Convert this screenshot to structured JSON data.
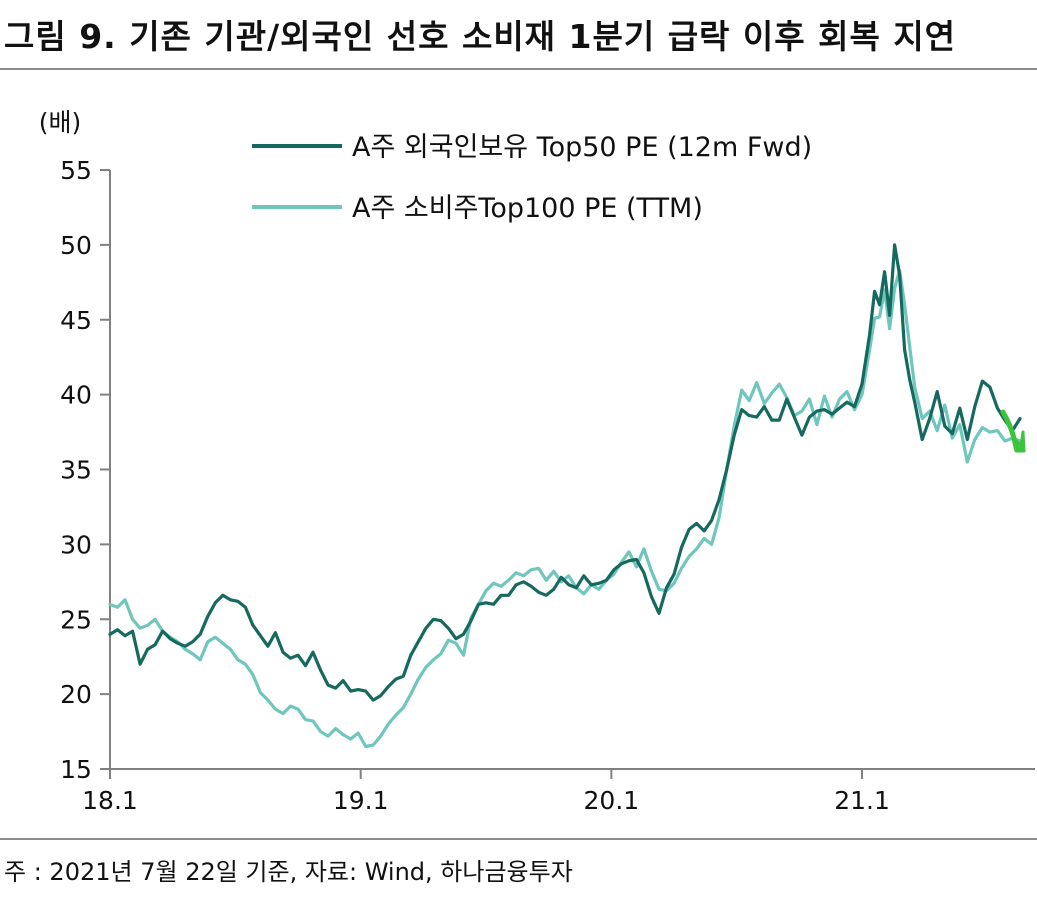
{
  "title": "그림 9. 기존 기관/외국인 선호 소비재 1분기 급락 이후 회복 지연",
  "footnote": "주 : 2021년 7월 22일 기준, 자료: Wind, 하나금융투자",
  "chart_data": {
    "type": "line",
    "ylabel": "(배)",
    "xlabel": "",
    "ylim": [
      15,
      55
    ],
    "yticks": [
      15,
      20,
      25,
      30,
      35,
      40,
      45,
      50,
      55
    ],
    "xticks": [
      "18.1",
      "19.1",
      "20.1",
      "21.1"
    ],
    "xlim_years": [
      2018.0,
      2021.69
    ],
    "grid": false,
    "legend_position": "top",
    "series": [
      {
        "name": "A주 외국인보유 Top50 PE (12m Fwd)",
        "color": "#16695e",
        "points": [
          [
            2018.0,
            24.0
          ],
          [
            2018.03,
            24.3
          ],
          [
            2018.06,
            23.9
          ],
          [
            2018.09,
            24.2
          ],
          [
            2018.12,
            22.0
          ],
          [
            2018.15,
            23.0
          ],
          [
            2018.18,
            23.3
          ],
          [
            2018.21,
            24.2
          ],
          [
            2018.24,
            23.7
          ],
          [
            2018.27,
            23.4
          ],
          [
            2018.3,
            23.2
          ],
          [
            2018.33,
            23.5
          ],
          [
            2018.36,
            24.0
          ],
          [
            2018.39,
            25.2
          ],
          [
            2018.42,
            26.1
          ],
          [
            2018.45,
            26.6
          ],
          [
            2018.48,
            26.3
          ],
          [
            2018.51,
            26.2
          ],
          [
            2018.54,
            25.8
          ],
          [
            2018.57,
            24.6
          ],
          [
            2018.6,
            23.9
          ],
          [
            2018.63,
            23.2
          ],
          [
            2018.66,
            24.1
          ],
          [
            2018.69,
            22.8
          ],
          [
            2018.72,
            22.4
          ],
          [
            2018.75,
            22.6
          ],
          [
            2018.78,
            21.9
          ],
          [
            2018.81,
            22.8
          ],
          [
            2018.84,
            21.6
          ],
          [
            2018.87,
            20.6
          ],
          [
            2018.9,
            20.4
          ],
          [
            2018.93,
            20.9
          ],
          [
            2018.96,
            20.2
          ],
          [
            2018.99,
            20.3
          ],
          [
            2019.02,
            20.2
          ],
          [
            2019.05,
            19.6
          ],
          [
            2019.08,
            19.9
          ],
          [
            2019.11,
            20.5
          ],
          [
            2019.14,
            21.0
          ],
          [
            2019.17,
            21.2
          ],
          [
            2019.2,
            22.6
          ],
          [
            2019.23,
            23.5
          ],
          [
            2019.26,
            24.4
          ],
          [
            2019.29,
            25.0
          ],
          [
            2019.32,
            24.9
          ],
          [
            2019.35,
            24.4
          ],
          [
            2019.38,
            23.7
          ],
          [
            2019.41,
            24.0
          ],
          [
            2019.44,
            24.9
          ],
          [
            2019.47,
            26.0
          ],
          [
            2019.5,
            26.1
          ],
          [
            2019.53,
            26.0
          ],
          [
            2019.56,
            26.6
          ],
          [
            2019.59,
            26.6
          ],
          [
            2019.62,
            27.3
          ],
          [
            2019.65,
            27.5
          ],
          [
            2019.68,
            27.2
          ],
          [
            2019.71,
            26.8
          ],
          [
            2019.74,
            26.6
          ],
          [
            2019.77,
            27.0
          ],
          [
            2019.8,
            27.8
          ],
          [
            2019.83,
            27.3
          ],
          [
            2019.86,
            27.1
          ],
          [
            2019.89,
            27.9
          ],
          [
            2019.92,
            27.3
          ],
          [
            2019.95,
            27.4
          ],
          [
            2019.98,
            27.6
          ],
          [
            2020.01,
            28.3
          ],
          [
            2020.04,
            28.7
          ],
          [
            2020.07,
            28.9
          ],
          [
            2020.1,
            29.0
          ],
          [
            2020.13,
            28.1
          ],
          [
            2020.16,
            26.5
          ],
          [
            2020.19,
            25.4
          ],
          [
            2020.22,
            27.1
          ],
          [
            2020.25,
            28.0
          ],
          [
            2020.28,
            29.8
          ],
          [
            2020.31,
            31.0
          ],
          [
            2020.34,
            31.4
          ],
          [
            2020.37,
            30.9
          ],
          [
            2020.4,
            31.6
          ],
          [
            2020.43,
            33.0
          ],
          [
            2020.46,
            35.0
          ],
          [
            2020.49,
            37.3
          ],
          [
            2020.52,
            39.0
          ],
          [
            2020.55,
            38.6
          ],
          [
            2020.58,
            38.5
          ],
          [
            2020.61,
            39.2
          ],
          [
            2020.64,
            38.3
          ],
          [
            2020.67,
            38.3
          ],
          [
            2020.7,
            39.7
          ],
          [
            2020.73,
            38.5
          ],
          [
            2020.76,
            37.3
          ],
          [
            2020.79,
            38.5
          ],
          [
            2020.82,
            38.9
          ],
          [
            2020.85,
            39.0
          ],
          [
            2020.88,
            38.7
          ],
          [
            2020.91,
            39.1
          ],
          [
            2020.94,
            39.5
          ],
          [
            2020.97,
            39.2
          ],
          [
            2021.0,
            40.7
          ],
          [
            2021.03,
            44.0
          ],
          [
            2021.05,
            46.9
          ],
          [
            2021.07,
            46.0
          ],
          [
            2021.09,
            48.2
          ],
          [
            2021.11,
            45.3
          ],
          [
            2021.13,
            50.0
          ],
          [
            2021.15,
            48.0
          ],
          [
            2021.17,
            43.0
          ],
          [
            2021.19,
            41.0
          ],
          [
            2021.21,
            39.5
          ],
          [
            2021.24,
            37.0
          ],
          [
            2021.27,
            38.4
          ],
          [
            2021.3,
            40.2
          ],
          [
            2021.33,
            37.9
          ],
          [
            2021.36,
            37.4
          ],
          [
            2021.39,
            39.1
          ],
          [
            2021.42,
            37.0
          ],
          [
            2021.45,
            39.2
          ],
          [
            2021.48,
            40.9
          ],
          [
            2021.51,
            40.5
          ],
          [
            2021.54,
            39.1
          ],
          [
            2021.57,
            38.3
          ],
          [
            2021.6,
            37.6
          ],
          [
            2021.63,
            38.4
          ]
        ]
      },
      {
        "name": "A주 소비주Top100 PE (TTM)",
        "color": "#6ec6bc",
        "points": [
          [
            2018.0,
            26.0
          ],
          [
            2018.03,
            25.8
          ],
          [
            2018.06,
            26.3
          ],
          [
            2018.09,
            25.0
          ],
          [
            2018.12,
            24.4
          ],
          [
            2018.15,
            24.6
          ],
          [
            2018.18,
            25.0
          ],
          [
            2018.21,
            24.2
          ],
          [
            2018.24,
            23.8
          ],
          [
            2018.27,
            23.5
          ],
          [
            2018.3,
            23.0
          ],
          [
            2018.33,
            22.7
          ],
          [
            2018.36,
            22.3
          ],
          [
            2018.39,
            23.5
          ],
          [
            2018.42,
            23.8
          ],
          [
            2018.45,
            23.4
          ],
          [
            2018.48,
            23.0
          ],
          [
            2018.51,
            22.3
          ],
          [
            2018.54,
            22.0
          ],
          [
            2018.57,
            21.3
          ],
          [
            2018.6,
            20.1
          ],
          [
            2018.63,
            19.6
          ],
          [
            2018.66,
            19.0
          ],
          [
            2018.69,
            18.7
          ],
          [
            2018.72,
            19.2
          ],
          [
            2018.75,
            19.0
          ],
          [
            2018.78,
            18.3
          ],
          [
            2018.81,
            18.2
          ],
          [
            2018.84,
            17.5
          ],
          [
            2018.87,
            17.2
          ],
          [
            2018.9,
            17.7
          ],
          [
            2018.93,
            17.3
          ],
          [
            2018.96,
            17.0
          ],
          [
            2018.99,
            17.4
          ],
          [
            2019.02,
            16.5
          ],
          [
            2019.05,
            16.6
          ],
          [
            2019.08,
            17.2
          ],
          [
            2019.11,
            18.0
          ],
          [
            2019.14,
            18.6
          ],
          [
            2019.17,
            19.1
          ],
          [
            2019.2,
            20.0
          ],
          [
            2019.23,
            21.0
          ],
          [
            2019.26,
            21.8
          ],
          [
            2019.29,
            22.3
          ],
          [
            2019.32,
            22.7
          ],
          [
            2019.35,
            23.6
          ],
          [
            2019.38,
            23.4
          ],
          [
            2019.41,
            22.6
          ],
          [
            2019.44,
            25.1
          ],
          [
            2019.47,
            26.0
          ],
          [
            2019.5,
            26.9
          ],
          [
            2019.53,
            27.4
          ],
          [
            2019.56,
            27.2
          ],
          [
            2019.59,
            27.6
          ],
          [
            2019.62,
            28.1
          ],
          [
            2019.65,
            27.9
          ],
          [
            2019.68,
            28.3
          ],
          [
            2019.71,
            28.4
          ],
          [
            2019.74,
            27.6
          ],
          [
            2019.77,
            28.2
          ],
          [
            2019.8,
            27.5
          ],
          [
            2019.83,
            27.9
          ],
          [
            2019.86,
            27.1
          ],
          [
            2019.89,
            26.7
          ],
          [
            2019.92,
            27.3
          ],
          [
            2019.95,
            27.0
          ],
          [
            2019.98,
            27.6
          ],
          [
            2020.01,
            28.0
          ],
          [
            2020.04,
            28.8
          ],
          [
            2020.07,
            29.5
          ],
          [
            2020.1,
            28.5
          ],
          [
            2020.13,
            29.7
          ],
          [
            2020.16,
            28.2
          ],
          [
            2020.19,
            27.0
          ],
          [
            2020.22,
            26.9
          ],
          [
            2020.25,
            27.4
          ],
          [
            2020.28,
            28.4
          ],
          [
            2020.31,
            29.2
          ],
          [
            2020.34,
            29.7
          ],
          [
            2020.37,
            30.4
          ],
          [
            2020.4,
            30.0
          ],
          [
            2020.43,
            31.8
          ],
          [
            2020.46,
            35.0
          ],
          [
            2020.49,
            37.9
          ],
          [
            2020.52,
            40.3
          ],
          [
            2020.55,
            39.6
          ],
          [
            2020.58,
            40.8
          ],
          [
            2020.61,
            39.4
          ],
          [
            2020.64,
            40.1
          ],
          [
            2020.67,
            40.7
          ],
          [
            2020.7,
            39.8
          ],
          [
            2020.73,
            38.6
          ],
          [
            2020.76,
            38.9
          ],
          [
            2020.79,
            39.7
          ],
          [
            2020.82,
            38.0
          ],
          [
            2020.85,
            39.9
          ],
          [
            2020.88,
            38.5
          ],
          [
            2020.91,
            39.7
          ],
          [
            2020.94,
            40.2
          ],
          [
            2020.97,
            39.0
          ],
          [
            2021.0,
            40.0
          ],
          [
            2021.03,
            43.0
          ],
          [
            2021.05,
            45.1
          ],
          [
            2021.07,
            45.2
          ],
          [
            2021.09,
            47.0
          ],
          [
            2021.11,
            44.4
          ],
          [
            2021.13,
            47.1
          ],
          [
            2021.15,
            48.3
          ],
          [
            2021.17,
            46.0
          ],
          [
            2021.19,
            43.2
          ],
          [
            2021.21,
            40.5
          ],
          [
            2021.24,
            38.4
          ],
          [
            2021.27,
            38.9
          ],
          [
            2021.3,
            37.6
          ],
          [
            2021.33,
            39.3
          ],
          [
            2021.36,
            37.1
          ],
          [
            2021.39,
            38.0
          ],
          [
            2021.42,
            35.5
          ],
          [
            2021.45,
            37.0
          ],
          [
            2021.48,
            37.8
          ],
          [
            2021.51,
            37.5
          ],
          [
            2021.54,
            37.6
          ],
          [
            2021.57,
            36.9
          ],
          [
            2021.6,
            37.1
          ],
          [
            2021.63,
            36.9
          ]
        ]
      }
    ],
    "annotation": {
      "type": "down-arrow",
      "color": "#3cc43c"
    }
  }
}
